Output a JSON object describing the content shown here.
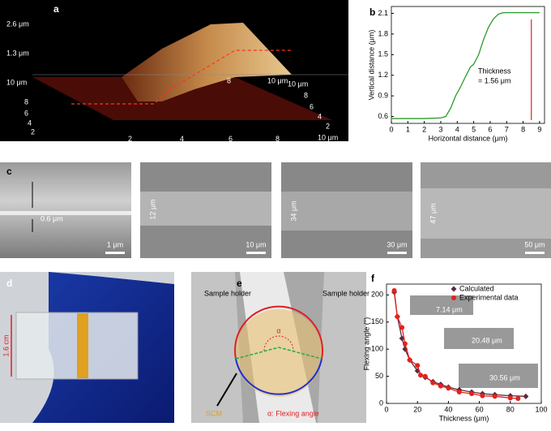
{
  "chart_data": [
    {
      "type": "line",
      "panel": "b",
      "xlabel": "Horizontal distance (μm)",
      "ylabel": "Vertical distance (μm)",
      "annotation": [
        "Thickness",
        "= 1.56 μm"
      ],
      "xlim": [
        0,
        9.3
      ],
      "ylim": [
        0.5,
        2.2
      ],
      "xticks": [
        0,
        1,
        2,
        3,
        4,
        5,
        6,
        7,
        8,
        9
      ],
      "yticks": [
        0.6,
        0.9,
        1.2,
        1.5,
        1.8,
        2.1
      ],
      "series": [
        {
          "color": "#2a9a2a",
          "x": [
            0,
            1,
            2,
            3,
            3.3,
            3.6,
            3.9,
            4.2,
            4.5,
            4.8,
            5.0,
            5.3,
            5.6,
            5.9,
            6.2,
            6.5,
            6.8,
            7.2,
            8,
            9
          ],
          "values": [
            0.57,
            0.57,
            0.57,
            0.58,
            0.6,
            0.72,
            0.9,
            1.03,
            1.18,
            1.32,
            1.36,
            1.5,
            1.72,
            1.9,
            2.02,
            2.09,
            2.11,
            2.11,
            2.11,
            2.11
          ]
        }
      ]
    },
    {
      "type": "scatter",
      "panel": "f",
      "xlabel": "Thickness (μm)",
      "ylabel": "Flexing angle (°)",
      "legend": "top-right",
      "show_lines": true,
      "xlim": [
        0,
        100
      ],
      "ylim": [
        0,
        220
      ],
      "xticks": [
        0,
        20,
        40,
        60,
        80,
        100
      ],
      "yticks": [
        0,
        50,
        100,
        150,
        200
      ],
      "series": [
        {
          "name": "Calculated",
          "color": "#5a2a3e",
          "marker": "diamond",
          "x": [
            5,
            7,
            10,
            12,
            15,
            20,
            25,
            30,
            35,
            40,
            47,
            55,
            62,
            70,
            80,
            90
          ],
          "values": [
            205,
            160,
            120,
            100,
            80,
            60,
            48,
            40,
            35,
            30,
            25,
            21,
            18,
            16,
            14,
            13
          ]
        },
        {
          "name": "Experimental data",
          "color": "#e3221b",
          "marker": "circle",
          "x": [
            5,
            7,
            10,
            12,
            15,
            20,
            22,
            25,
            30,
            35,
            40,
            47,
            55,
            62,
            70,
            80,
            85
          ],
          "values": [
            208,
            160,
            140,
            110,
            80,
            70,
            52,
            50,
            38,
            32,
            28,
            21,
            18,
            14,
            13,
            10,
            9
          ]
        }
      ]
    }
  ],
  "panels": {
    "letters": [
      "a",
      "b",
      "c",
      "d",
      "e",
      "f"
    ],
    "a": {
      "labels": [
        "2.6 μm",
        "1.3 μm",
        "10 μm",
        "8",
        "6",
        "4",
        "2",
        "8",
        "10 μm",
        "10 μm",
        "8",
        "6",
        "4",
        "2",
        "2",
        "4",
        "6",
        "8",
        "10 μm"
      ]
    },
    "c": {
      "thickness": [
        "0.6 μm",
        "12 μm",
        "34 μm",
        "47 μm"
      ],
      "scale": [
        "1 μm",
        "10 μm",
        "30 μm",
        "50 μm"
      ]
    },
    "d": {
      "length": "1.6 cm"
    },
    "e": {
      "holder_left": "Sample holder",
      "holder_right": "Sample holder",
      "alpha": "α",
      "scm": "SCM",
      "legend": "α: Flexing angle"
    },
    "f": {
      "insets": [
        "7.14 μm",
        "20.48 μm",
        "30.56 μm"
      ]
    }
  }
}
